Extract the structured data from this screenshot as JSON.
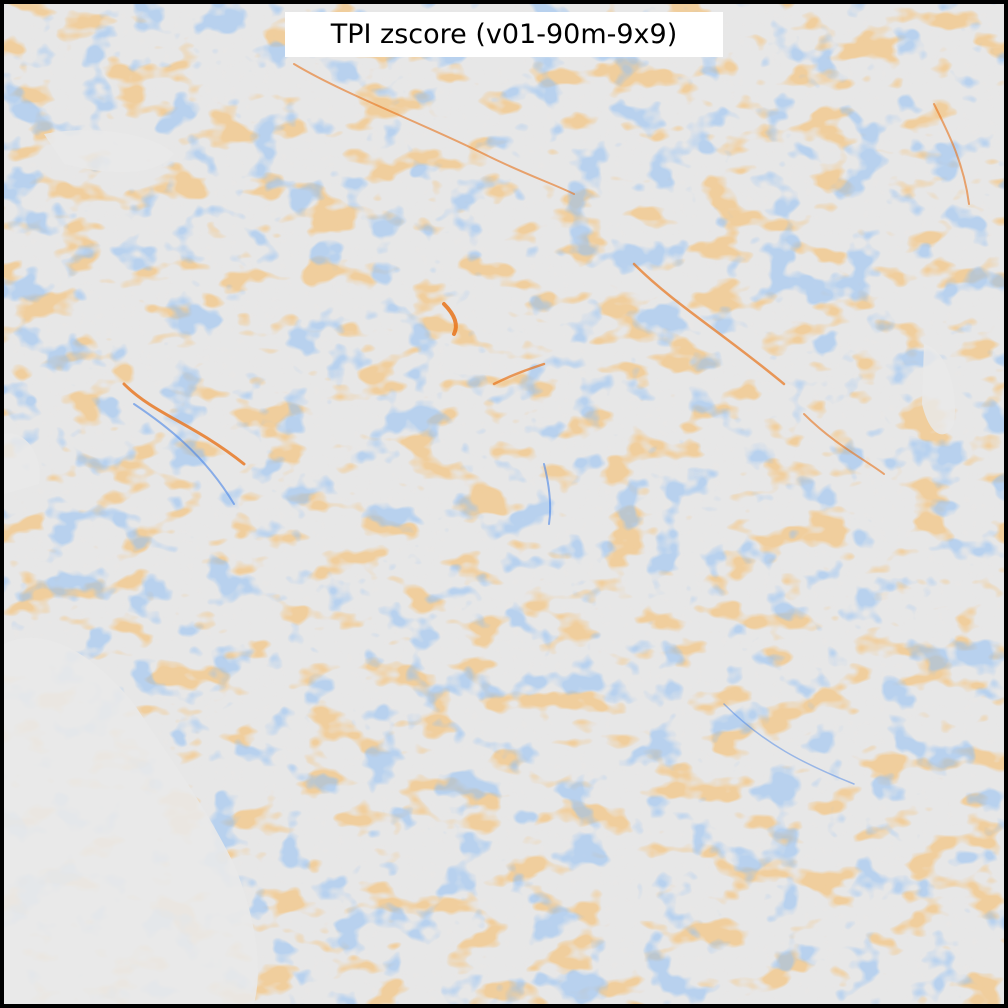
{
  "map": {
    "title": "TPI zscore (v01-90m-9x9)",
    "colors": {
      "background": "#e7e7e7",
      "positive": "#f07d1e",
      "negative": "#4a86e8",
      "border": "#000000"
    }
  }
}
